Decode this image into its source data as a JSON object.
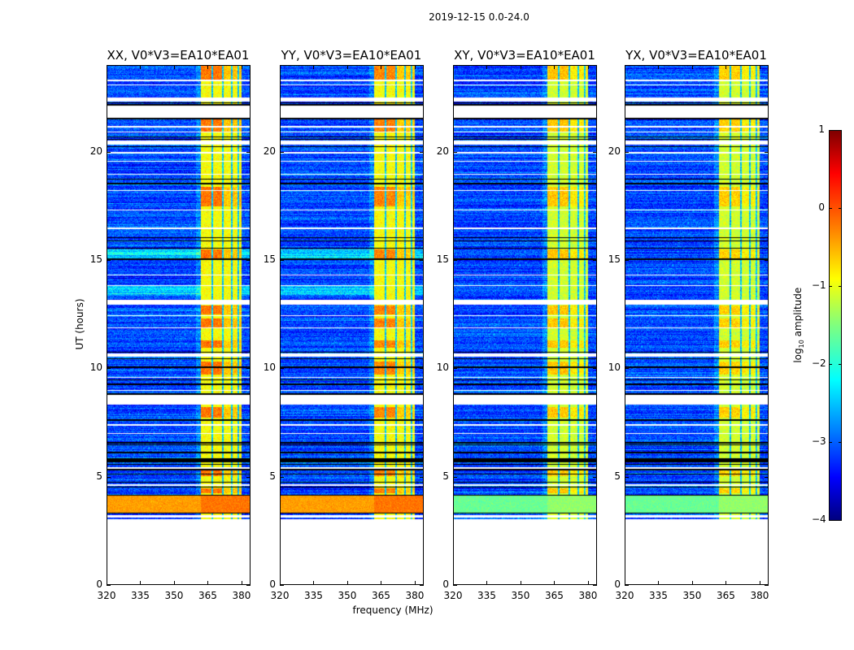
{
  "chart_data": {
    "type": "heatmap",
    "title": "2019-12-15 0.0-24.0",
    "xlabel": "frequency (MHz)",
    "ylabel": "UT (hours)",
    "xlim": [
      320,
      384
    ],
    "ylim": [
      0,
      24
    ],
    "xticks": [
      320,
      335,
      350,
      365,
      380
    ],
    "yticks": [
      0,
      5,
      10,
      15,
      20
    ],
    "panels": [
      {
        "title": "XX, V0*V3=EA10*EA01",
        "pol": "XX",
        "cross": false
      },
      {
        "title": "YY, V0*V3=EA10*EA01",
        "pol": "YY",
        "cross": false
      },
      {
        "title": "XY, V0*V3=EA10*EA01",
        "pol": "XY",
        "cross": true
      },
      {
        "title": "YX, V0*V3=EA10*EA01",
        "pol": "YX",
        "cross": true
      }
    ],
    "colorbar": {
      "label_prefix": "log",
      "label_sub": "10",
      "label_suffix": " amplitude",
      "ticks": [
        "1",
        "0",
        "−1",
        "−2",
        "−3",
        "−4"
      ],
      "range": [
        -4,
        1
      ],
      "colormap": "jet"
    },
    "data_start_hour": 3.0,
    "background_level": -3.0,
    "flagged_intervals": [
      [
        3.1,
        3.2
      ],
      [
        4.55,
        4.62
      ],
      [
        5.35,
        5.4
      ],
      [
        6.95,
        7.0
      ],
      [
        7.35,
        7.4
      ],
      [
        8.3,
        8.75
      ],
      [
        8.95,
        9.0
      ],
      [
        9.55,
        9.6
      ],
      [
        10.55,
        10.7
      ],
      [
        11.85,
        11.9
      ],
      [
        12.4,
        12.45
      ],
      [
        12.95,
        13.15
      ],
      [
        13.8,
        13.83
      ],
      [
        14.3,
        14.33
      ],
      [
        16.45,
        16.5
      ],
      [
        17.3,
        17.35
      ],
      [
        18.2,
        18.25
      ],
      [
        18.95,
        19.0
      ],
      [
        19.55,
        19.6
      ],
      [
        19.95,
        20.0
      ],
      [
        20.35,
        20.55
      ],
      [
        20.9,
        20.95
      ],
      [
        21.15,
        21.2
      ],
      [
        21.6,
        22.15
      ],
      [
        22.35,
        22.55
      ],
      [
        23.1,
        23.15
      ],
      [
        23.3,
        23.35
      ]
    ],
    "black_lines": [
      3.3,
      4.12,
      4.5,
      4.72,
      5.1,
      5.3,
      5.55,
      5.68,
      5.75,
      5.82,
      6.1,
      6.45,
      6.55,
      7.6,
      8.8,
      9.25,
      9.45,
      10.05,
      10.45,
      10.75,
      15.05,
      15.55,
      15.9,
      16.05,
      18.55,
      18.75,
      20.25,
      20.4,
      20.6,
      20.7,
      22.2,
      22.3,
      21.55
    ],
    "bright_block": {
      "t_start": 3.3,
      "t_end": 4.1,
      "level_parallel": -0.4,
      "level_cross": -1.6
    },
    "rfi_band": {
      "f_start": 362,
      "f_end": 380.5,
      "level_parallel": -0.9,
      "level_cross": -1.1,
      "dark_channels": [
        367.2,
        371.8,
        376.0,
        379.0
      ],
      "hot_intervals": [
        [
          4.2,
          4.45
        ],
        [
          5.0,
          5.3
        ],
        [
          7.7,
          8.2
        ],
        [
          9.7,
          10.3
        ],
        [
          10.95,
          11.3
        ],
        [
          11.9,
          12.3
        ],
        [
          12.5,
          12.9
        ],
        [
          15.1,
          15.5
        ],
        [
          17.5,
          18.4
        ],
        [
          20.9,
          21.5
        ],
        [
          23.3,
          24.0
        ]
      ]
    },
    "cyan_intervals": [
      [
        15.1,
        15.5
      ],
      [
        13.4,
        13.8
      ]
    ]
  }
}
